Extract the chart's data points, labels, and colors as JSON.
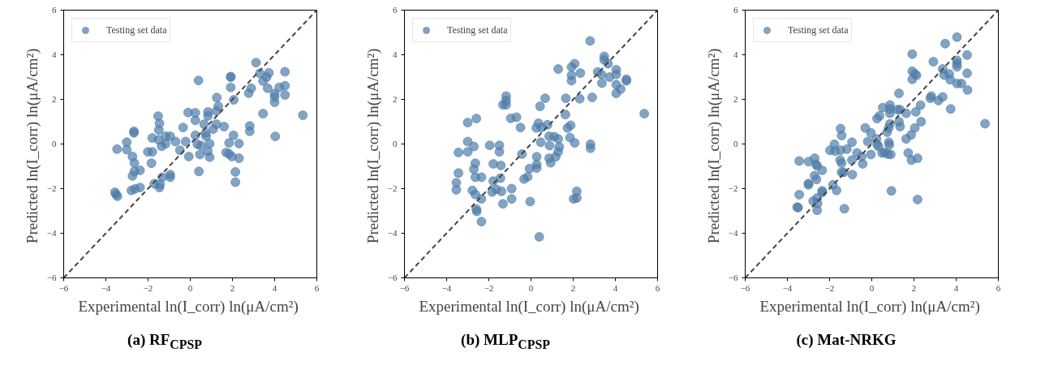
{
  "chart_data": [
    {
      "type": "scatter",
      "title": "(a) RF$_{CPSP}$",
      "xlabel": "Experimental ln(I_corr)  ln(μA/cm²)",
      "ylabel": "Predicted ln(I_corr)  ln(μA/cm²)",
      "xlim": [
        -6,
        6
      ],
      "ylim": [
        -6,
        6
      ],
      "xticks": [
        -6,
        -4,
        -2,
        0,
        2,
        4,
        6
      ],
      "yticks": [
        -6,
        -4,
        -2,
        0,
        2,
        4,
        6
      ],
      "grid": false,
      "legend": "top left",
      "series": [
        {
          "name": "Testing set data",
          "marker": "circle",
          "color": "#4f7daa",
          "x": [
            3.12,
            0.39,
            1.92,
            1.92,
            1.92,
            3.3,
            3.73,
            3.62,
            3.45,
            4.49,
            4.49,
            4.22,
            3.67,
            2.89,
            2.77,
            4.0,
            4.0,
            4.0,
            4.49,
            2.06,
            1.26,
            1.33,
            1.24,
            0.84,
            0.84,
            -0.1,
            0.24,
            0.24,
            3.45,
            5.34,
            -1.52,
            -1.46,
            -1.49,
            0.66,
            1.24,
            1.6,
            -0.34,
            1.09,
            2.82,
            2.82,
            -2.67,
            -2.67,
            -1.17,
            -0.95,
            -1.8,
            -1.5,
            0.24,
            0.75,
            2.05,
            4.03,
            -0.7,
            -0.22,
            -1.17,
            -1.36,
            -3.01,
            -3.01,
            -3.47,
            -2.01,
            -1.8,
            -0.49,
            0.34,
            0.51,
            0.92,
            0.83,
            1.84,
            2.31,
            1.7,
            1.84,
            1.97,
            2.31,
            -0.07,
            0.46,
            0.92,
            -2.74,
            -2.65,
            -1.84,
            -2.65,
            -2.74,
            -2.38,
            0.41,
            -0.95,
            -0.95,
            -1.33,
            2.14,
            2.14,
            -1.7,
            -1.43,
            -1.46,
            -2.79,
            -2.62,
            -2.38,
            -3.57,
            -3.52,
            -3.45,
            0.73
          ],
          "values": [
            3.65,
            2.85,
            3.02,
            3.0,
            2.54,
            3.17,
            3.19,
            3.0,
            2.82,
            3.24,
            2.61,
            2.54,
            2.5,
            2.5,
            2.28,
            2.26,
            2.11,
            1.87,
            2.2,
            1.98,
            2.08,
            1.69,
            1.48,
            1.44,
            1.26,
            1.41,
            1.4,
            1.06,
            1.36,
            1.29,
            1.25,
            0.92,
            0.63,
            0.89,
            0.89,
            0.78,
            0.74,
            0.67,
            0.81,
            0.57,
            0.57,
            0.5,
            0.35,
            0.35,
            0.27,
            0.19,
            0.39,
            0.35,
            0.39,
            0.34,
            0.11,
            0.11,
            0.01,
            -0.1,
            0.08,
            -0.25,
            -0.23,
            -0.35,
            -0.35,
            -0.28,
            -0.01,
            -0.07,
            0.01,
            -0.32,
            0.05,
            0.02,
            -0.38,
            -0.44,
            -0.56,
            -0.64,
            -0.56,
            -0.47,
            -0.59,
            -0.56,
            -0.86,
            -0.86,
            -1.23,
            -1.43,
            -1.18,
            -1.23,
            -1.37,
            -1.49,
            -1.49,
            -1.25,
            -1.71,
            -1.78,
            -1.81,
            -1.95,
            -2.08,
            -2.01,
            -1.95,
            -2.16,
            -2.26,
            -2.34,
            0.5
          ]
        },
        {
          "type": "line",
          "color": "#444444",
          "line_style": "dashed",
          "x": [
            -6,
            6
          ],
          "values": [
            -6,
            6
          ]
        }
      ]
    },
    {
      "type": "scatter",
      "title": "(b) MLP$_{CPSP}$",
      "xlabel": "Experimental ln(I_corr)  ln(μA/cm²)",
      "ylabel": "Predicted ln(I_corr)  ln(μA/cm²)",
      "xlim": [
        -6,
        6
      ],
      "ylim": [
        -6,
        6
      ],
      "xticks": [
        -6,
        -4,
        -2,
        0,
        2,
        4,
        6
      ],
      "yticks": [
        -6,
        -4,
        -2,
        0,
        2,
        4,
        6
      ],
      "grid": false,
      "legend": "top left",
      "series": [
        {
          "name": "Testing set data",
          "marker": "circle",
          "color": "#4f7daa",
          "x": [
            2.8,
            3.47,
            3.47,
            3.65,
            2.07,
            1.92,
            1.92,
            1.92,
            1.29,
            2.34,
            3.16,
            3.34,
            3.72,
            4.04,
            4.04,
            4.04,
            4.52,
            4.52,
            4.25,
            4.04,
            3.36,
            2.9,
            2.31,
            1.65,
            0.67,
            0.43,
            -1.18,
            -1.18,
            -1.33,
            -1.18,
            5.37,
            1.63,
            -0.96,
            -0.69,
            -2.59,
            -3.0,
            -0.5,
            0.35,
            0.25,
            0.49,
            0.78,
            1.88,
            1.73,
            1.85,
            0.86,
            1.1,
            1.29,
            1.34,
            0.46,
            0.88,
            2.07,
            2.82,
            2.82,
            -3.0,
            -2.71,
            -3.44,
            -3.0,
            -1.96,
            -1.5,
            -1.5,
            -0.43,
            1.29,
            1.17,
            0.86,
            0.93,
            0.27,
            0.27,
            0.27,
            -0.07,
            -1.79,
            -1.43,
            -2.64,
            -2.71,
            -3.44,
            -2.64,
            -2.35,
            -1.45,
            -1.79,
            -0.33,
            -0.16,
            -3.54,
            -3.54,
            -2.78,
            -2.64,
            -1.84,
            -1.65,
            -1.4,
            -0.92,
            -2.35,
            -0.92,
            -0.04,
            -1.33,
            -2.59,
            -2.57,
            -2.35,
            0.39,
            2.17,
            2.02,
            2.17
          ],
          "values": [
            4.62,
            3.93,
            3.77,
            3.6,
            3.6,
            3.45,
            3.08,
            2.84,
            3.36,
            3.18,
            3.23,
            3.12,
            3.0,
            3.33,
            3.12,
            2.66,
            2.9,
            2.83,
            2.46,
            2.27,
            2.73,
            2.09,
            2.03,
            2.05,
            2.05,
            1.69,
            2.15,
            1.95,
            1.76,
            1.76,
            1.36,
            1.32,
            1.15,
            1.2,
            1.14,
            0.96,
            0.74,
            0.93,
            0.72,
            0.74,
            0.86,
            0.84,
            0.72,
            0.29,
            0.35,
            0.33,
            0.23,
            -0.13,
            0.08,
            -0.07,
            0.05,
            -0.01,
            -0.19,
            0.11,
            -0.11,
            -0.38,
            -0.35,
            -0.06,
            -0.06,
            -0.35,
            -0.45,
            -0.35,
            -0.57,
            -0.64,
            -0.84,
            -0.57,
            -0.91,
            -1.08,
            -1.1,
            -0.89,
            -0.96,
            -0.86,
            -1.13,
            -1.3,
            -1.49,
            -1.49,
            -1.53,
            -1.66,
            -1.57,
            -1.47,
            -1.74,
            -2.05,
            -2.08,
            -2.26,
            -2.15,
            -2.03,
            -2.12,
            -2.0,
            -2.46,
            -2.46,
            -2.58,
            -2.68,
            -2.92,
            -3.02,
            -3.48,
            -4.16,
            -2.12,
            -2.46,
            -2.42
          ]
        },
        {
          "type": "line",
          "color": "#444444",
          "line_style": "dashed",
          "x": [
            -6,
            6
          ],
          "values": [
            -6,
            6
          ]
        }
      ]
    },
    {
      "type": "scatter",
      "title": "(c) Mat-NRKG",
      "xlabel": "Experimental ln(I_corr)  ln(μA/cm²)",
      "ylabel": "Predicted ln(I_corr)  ln(μA/cm²)",
      "xlim": [
        -6,
        6
      ],
      "ylim": [
        -6,
        6
      ],
      "xticks": [
        -6,
        -4,
        -2,
        0,
        2,
        4,
        6
      ],
      "yticks": [
        -6,
        -4,
        -2,
        0,
        2,
        4,
        6
      ],
      "grid": false,
      "legend": "top left",
      "series": [
        {
          "name": "Testing set data",
          "marker": "circle",
          "color": "#4f7daa",
          "x": [
            4.04,
            3.48,
            1.92,
            4.52,
            2.92,
            4.04,
            4.04,
            4.04,
            1.92,
            2.04,
            2.12,
            1.92,
            3.36,
            3.43,
            3.67,
            3.72,
            4.52,
            4.04,
            4.25,
            4.54,
            1.29,
            2.82,
            2.78,
            3.16,
            3.36,
            3.74,
            2.31,
            0.52,
            0.86,
            0.86,
            0.86,
            1.22,
            1.34,
            1.63,
            2.09,
            0.37,
            0.25,
            2.34,
            5.37,
            0.86,
            0.8,
            0.73,
            1.29,
            1.34,
            2.04,
            1.87,
            1.63,
            -1.48,
            -1.43,
            -0.31,
            -0.04,
            -0.19,
            0.22,
            0.25,
            0.32,
            0.49,
            0.61,
            0.81,
            0.83,
            0.9,
            0.76,
            -0.04,
            -0.94,
            -1.77,
            -1.98,
            -1.74,
            -1.48,
            -1.18,
            -0.7,
            -0.48,
            -0.43,
            -0.94,
            -0.92,
            -1.5,
            -1.43,
            1.73,
            1.88,
            2.17,
            -3.44,
            -3.0,
            -2.71,
            -2.64,
            -2.59,
            -2.35,
            -1.43,
            -1.33,
            -2.71,
            -2.62,
            -3.0,
            -3.0,
            -1.84,
            -1.67,
            -2.35,
            -2.35,
            -3.44,
            -2.78,
            -2.59,
            -2.57,
            -2.59,
            -3.54,
            -3.49,
            -1.3,
            0.93,
            2.17
          ],
          "values": [
            4.79,
            4.5,
            4.03,
            3.99,
            3.69,
            3.75,
            3.6,
            3.46,
            3.26,
            3.14,
            3.08,
            2.9,
            3.36,
            3.09,
            3.14,
            2.88,
            3.17,
            2.71,
            2.71,
            2.42,
            2.27,
            2.15,
            2.05,
            1.95,
            2.11,
            1.57,
            1.74,
            1.63,
            1.75,
            1.57,
            1.38,
            1.54,
            1.54,
            1.38,
            1.44,
            1.26,
            1.14,
            1.0,
            0.91,
            0.9,
            0.72,
            0.53,
            1.0,
            0.78,
            0.72,
            0.41,
            0.23,
            0.69,
            0.38,
            0.72,
            0.5,
            0.11,
            0.23,
            -0.01,
            -0.11,
            -0.4,
            -0.38,
            0.08,
            -0.04,
            -0.47,
            -0.45,
            -0.47,
            0.08,
            -0.01,
            -0.28,
            -0.32,
            -0.28,
            -0.23,
            -0.4,
            -0.56,
            -0.89,
            -0.72,
            -1.37,
            -0.72,
            -0.86,
            -0.4,
            -0.72,
            -0.64,
            -0.76,
            -0.79,
            -0.64,
            -0.91,
            -0.98,
            -1.18,
            -1.27,
            -1.27,
            -1.42,
            -1.59,
            -1.77,
            -1.83,
            -1.83,
            -2.08,
            -2.1,
            -2.17,
            -2.27,
            -2.56,
            -2.42,
            -2.66,
            -2.97,
            -2.83,
            -2.85,
            -2.9,
            -2.1,
            -2.49
          ]
        },
        {
          "type": "line",
          "color": "#444444",
          "line_style": "dashed",
          "x": [
            -6,
            6
          ],
          "values": [
            -6,
            6
          ]
        }
      ]
    }
  ]
}
